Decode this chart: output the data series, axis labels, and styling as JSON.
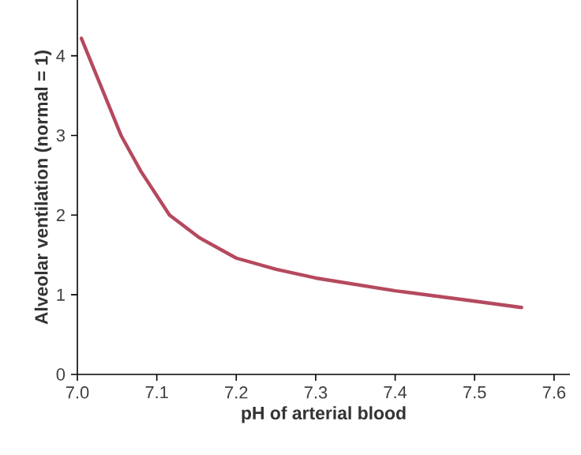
{
  "chart_data": {
    "type": "line",
    "xlabel": "pH of arterial blood",
    "ylabel": "Alveolar ventilation (normal = 1)",
    "x": [
      7.005,
      7.055,
      7.08,
      7.116,
      7.153,
      7.2,
      7.25,
      7.3,
      7.4,
      7.5,
      7.559
    ],
    "series": [
      {
        "color": "#b5495e",
        "values": [
          4.22,
          3.0,
          2.55,
          2.0,
          1.72,
          1.46,
          1.32,
          1.21,
          1.05,
          0.92,
          0.84
        ]
      }
    ],
    "xlim": [
      7.0,
      7.62
    ],
    "ylim": [
      0,
      4.7
    ],
    "xticks": [
      {
        "value": 7.0,
        "label": "7.0"
      },
      7.1,
      7.2,
      7.3,
      7.4,
      7.5,
      7.6
    ],
    "yticks": [
      0,
      1,
      2,
      3,
      4
    ],
    "grid": false,
    "marker": "none",
    "line_style": "solid"
  }
}
